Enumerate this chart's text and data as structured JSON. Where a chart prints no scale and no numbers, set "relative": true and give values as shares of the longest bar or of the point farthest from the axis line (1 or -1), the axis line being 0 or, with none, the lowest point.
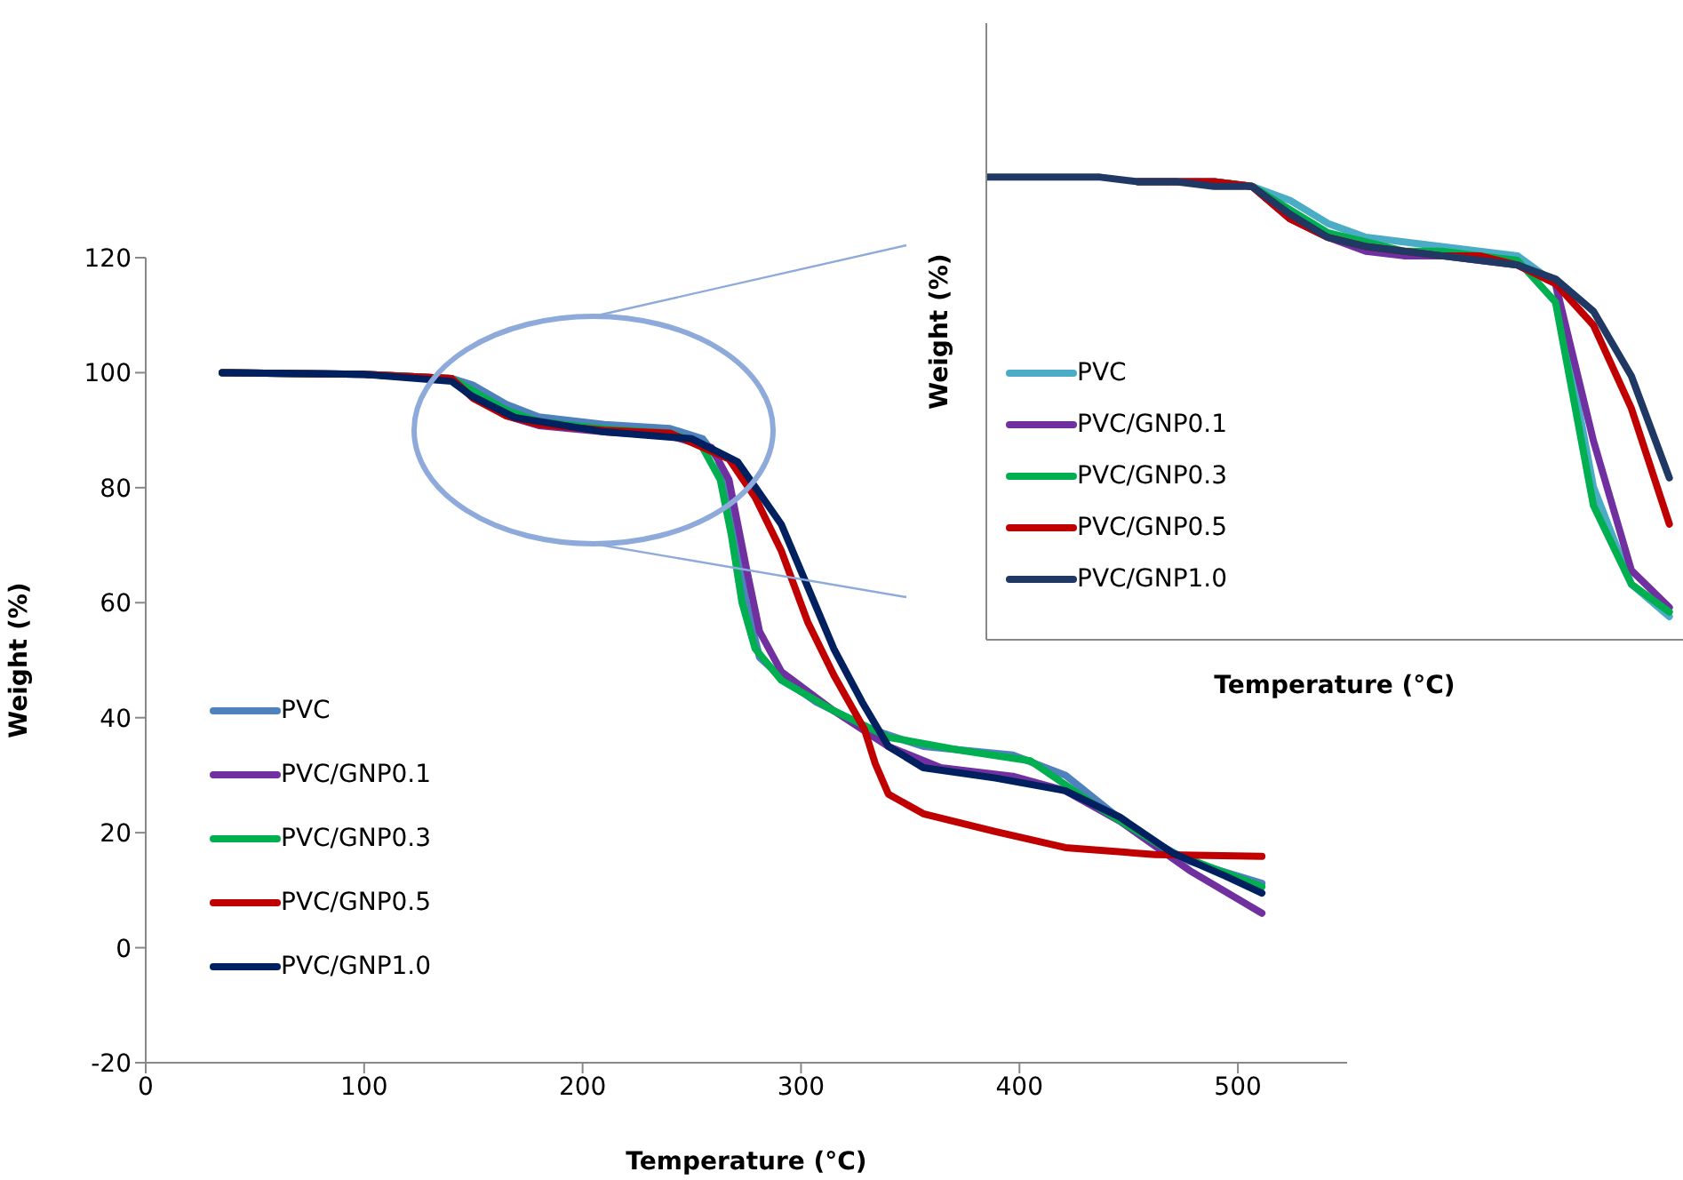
{
  "chart_data": [
    {
      "type": "line",
      "xlabel": "Temperature (°C)",
      "ylabel": "Weight (%)",
      "xlim": [
        0,
        550
      ],
      "xticks": [
        0,
        100,
        200,
        300,
        400,
        500
      ],
      "ylim": [
        -20,
        120
      ],
      "yticks": [
        -20,
        0,
        20,
        40,
        60,
        80,
        100,
        120
      ],
      "legend": "bottom left",
      "marker": "none",
      "line_style": "solid",
      "series": [
        {
          "name": "PVC",
          "color": "#4f81bd",
          "x": [
            35,
            100,
            140,
            150,
            165,
            180,
            210,
            240,
            255,
            262,
            266,
            271,
            275,
            281,
            291,
            307,
            332,
            356,
            397,
            421,
            454,
            478,
            511
          ],
          "values": [
            100,
            99.7,
            99,
            97.8,
            94.5,
            92.3,
            91,
            90.3,
            88.5,
            85,
            80,
            72,
            60,
            50.5,
            47,
            42.7,
            38,
            35,
            33.5,
            30,
            20,
            15,
            11.2
          ]
        },
        {
          "name": "PVC/GNP0.1",
          "color": "#7030a0",
          "x": [
            35,
            100,
            140,
            150,
            165,
            180,
            210,
            240,
            259,
            267,
            275,
            281,
            291,
            315,
            340,
            364,
            397,
            421,
            446,
            478,
            511
          ],
          "values": [
            100,
            99.7,
            99,
            96,
            92.5,
            90.8,
            89.7,
            89,
            87,
            81.4,
            66,
            55,
            48,
            41.2,
            35,
            31.3,
            29.8,
            27.3,
            22,
            13.4,
            6
          ]
        },
        {
          "name": "PVC/GNP0.3",
          "color": "#00b050",
          "x": [
            35,
            100,
            140,
            150,
            165,
            180,
            210,
            240,
            254,
            263,
            268,
            273,
            279,
            291,
            315,
            340,
            372,
            405,
            437,
            470,
            511
          ],
          "values": [
            100,
            99.7,
            99,
            96.8,
            93.5,
            91.5,
            90.2,
            89.5,
            87.6,
            81.4,
            72,
            60,
            52,
            46.5,
            41.2,
            36.6,
            34.4,
            32.5,
            24.2,
            16.5,
            10.6
          ]
        },
        {
          "name": "PVC/GNP0.5",
          "color": "#c00000",
          "x": [
            35,
            100,
            140,
            150,
            165,
            180,
            210,
            240,
            267,
            279,
            291,
            303,
            315,
            329,
            334,
            340,
            356,
            389,
            421,
            462,
            511
          ],
          "values": [
            100,
            99.7,
            99,
            95.5,
            92.5,
            91,
            90,
            89.5,
            85,
            78.3,
            69,
            56.7,
            47.4,
            38,
            32,
            26.7,
            23.3,
            20.2,
            17.4,
            16.2,
            15.9
          ]
        },
        {
          "name": "PVC/GNP1.0",
          "color": "#002060",
          "x": [
            35,
            100,
            140,
            149,
            169,
            210,
            250,
            271,
            291,
            303,
            315,
            328,
            340,
            356,
            389,
            421,
            446,
            470,
            494,
            511
          ],
          "values": [
            100,
            99.7,
            98.5,
            96,
            92.2,
            89.7,
            88.5,
            84.5,
            73.6,
            62.8,
            52,
            42.7,
            35,
            31.3,
            29.5,
            27.3,
            22.7,
            16.5,
            12.5,
            9.5
          ]
        }
      ]
    },
    {
      "type": "line",
      "xlabel": "Temperature (°C)",
      "ylabel": "Weight (%)",
      "relative": true,
      "legend": "bottom left",
      "marker": "none",
      "line_style": "solid",
      "categories": [
        null,
        null,
        null,
        null,
        null,
        null,
        null,
        null,
        null,
        null,
        null,
        null,
        null,
        null,
        null,
        null,
        null,
        null,
        null
      ],
      "series": [
        {
          "name": "PVC",
          "color": "#4bacc6",
          "values": [
            null,
            null,
            null,
            null,
            0.99,
            0.99,
            0.99,
            0.98,
            0.95,
            0.9,
            0.87,
            0.86,
            0.85,
            0.84,
            0.83,
            0.77,
            0.33,
            0.12,
            0.05
          ]
        },
        {
          "name": "PVC/GNP0.1",
          "color": "#7030a0",
          "values": [
            null,
            null,
            null,
            null,
            0.99,
            0.99,
            0.99,
            0.98,
            0.91,
            0.87,
            0.84,
            0.83,
            0.83,
            0.82,
            0.81,
            0.77,
            0.43,
            0.15,
            0.07
          ]
        },
        {
          "name": "PVC/GNP0.3",
          "color": "#00b050",
          "values": [
            null,
            null,
            null,
            null,
            null,
            null,
            0.99,
            0.98,
            0.93,
            0.88,
            0.86,
            0.84,
            0.84,
            0.83,
            0.82,
            0.73,
            0.29,
            0.12,
            0.06
          ]
        },
        {
          "name": "PVC/GNP0.5",
          "color": "#c00000",
          "values": [
            null,
            null,
            null,
            null,
            0.99,
            0.99,
            0.99,
            0.98,
            0.91,
            0.87,
            0.85,
            0.84,
            0.83,
            0.83,
            0.81,
            0.77,
            0.68,
            0.5,
            0.25
          ]
        },
        {
          "name": "PVC/GNP1.0",
          "color": "#1f3864",
          "values": [
            1,
            1,
            1,
            1,
            0.99,
            0.99,
            0.98,
            0.98,
            0.92,
            0.87,
            0.85,
            0.84,
            0.83,
            0.82,
            0.81,
            0.78,
            0.71,
            0.57,
            0.35
          ]
        }
      ]
    }
  ]
}
